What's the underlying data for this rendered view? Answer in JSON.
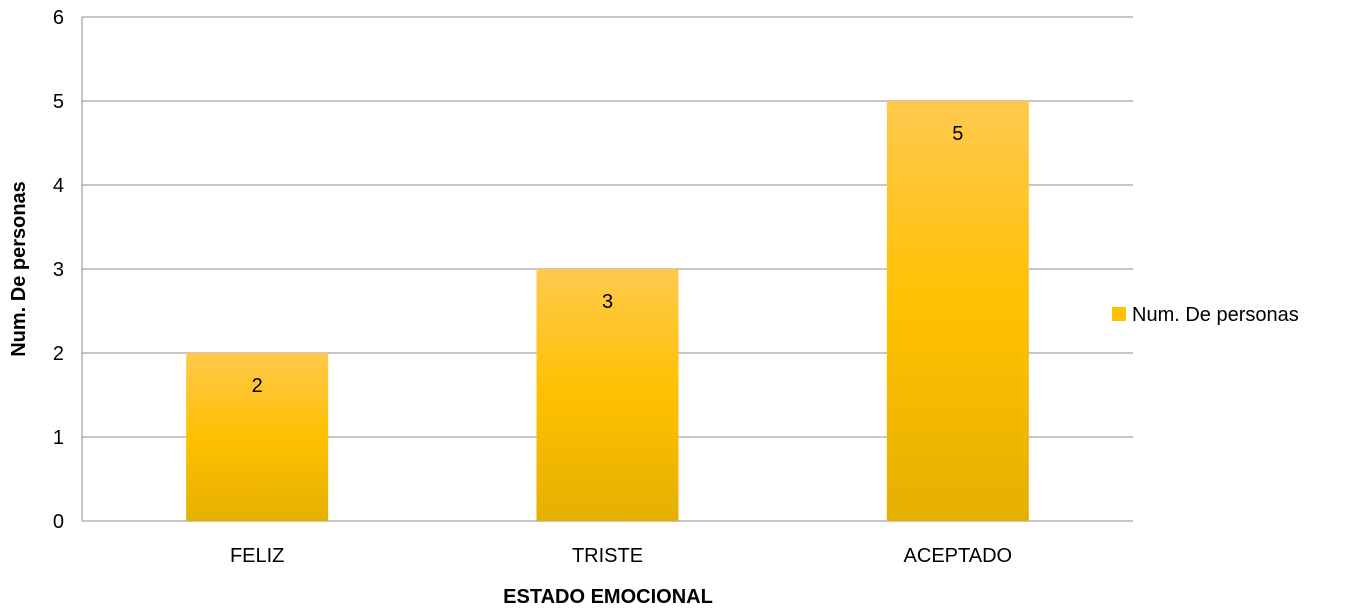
{
  "chart_data": {
    "type": "bar",
    "categories": [
      "FELIZ",
      "TRISTE",
      "ACEPTADO"
    ],
    "series": [
      {
        "name": "Num. De personas",
        "values": [
          2,
          3,
          5
        ]
      }
    ],
    "xlabel": "ESTADO EMOCIONAL",
    "ylabel": "Num. De personas",
    "ylim": [
      0,
      6
    ],
    "yticks": [
      "0",
      "1",
      "2",
      "3",
      "4",
      "5",
      "6"
    ],
    "data_labels": [
      "2",
      "3",
      "5"
    ],
    "grid": true,
    "legend_position": "right",
    "colors": {
      "bar_top": "#FFC94D",
      "bar_mid": "#FFC000",
      "bar_bottom": "#E5B000",
      "grid": "#8C8C8C",
      "axis": "#8C8C8C"
    }
  }
}
